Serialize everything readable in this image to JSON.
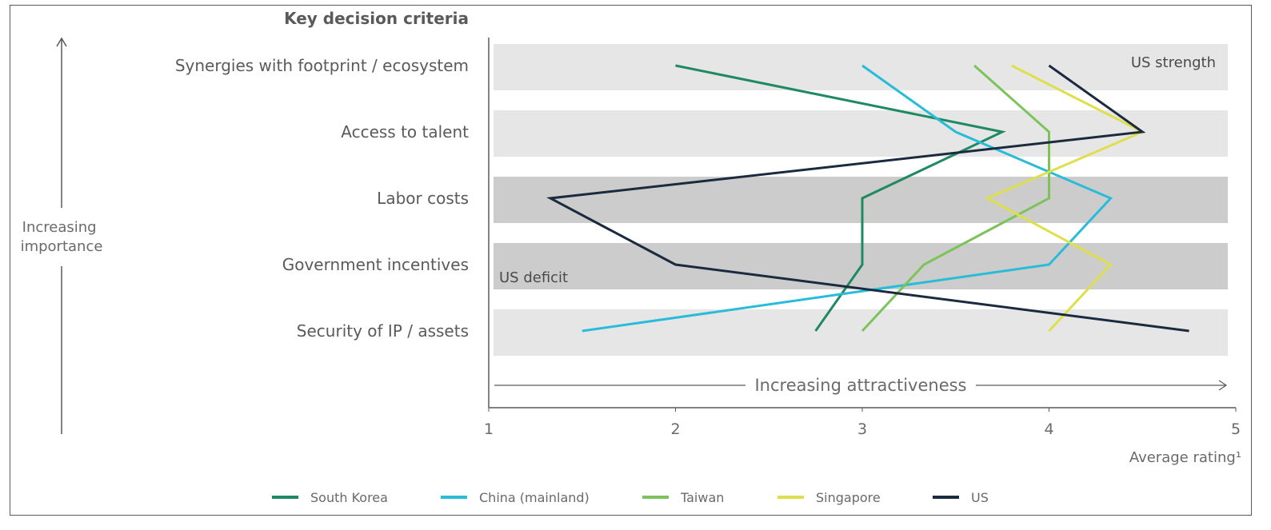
{
  "chart_data": {
    "type": "line",
    "header": "Key decision criteria",
    "categories": [
      "Synergies with footprint / ecosystem",
      "Access to talent",
      "Labor costs",
      "Government incentives",
      "Security of IP / assets"
    ],
    "band_shades": [
      "light",
      "light",
      "dark",
      "dark",
      "light"
    ],
    "band_labels": {
      "top": "US strength",
      "mid": "US deficit"
    },
    "series": [
      {
        "name": "South Korea",
        "color": "#1f8a62",
        "values": [
          2.0,
          3.75,
          3.0,
          3.0,
          2.75
        ]
      },
      {
        "name": "China (mainland)",
        "color": "#29bcd8",
        "values": [
          3.0,
          3.5,
          4.33,
          4.0,
          1.5
        ]
      },
      {
        "name": "Taiwan",
        "color": "#7cc45a",
        "values": [
          3.6,
          4.0,
          4.0,
          3.33,
          3.0
        ]
      },
      {
        "name": "Singapore",
        "color": "#dde04a",
        "values": [
          3.8,
          4.5,
          3.67,
          4.33,
          4.0
        ]
      },
      {
        "name": "US",
        "color": "#1b2b3f",
        "values": [
          4.0,
          4.5,
          1.33,
          2.0,
          4.75
        ]
      }
    ],
    "xlim": [
      1,
      5
    ],
    "xticks": [
      "1",
      "2",
      "3",
      "4",
      "5"
    ],
    "xlabel": "Average rating¹",
    "x_arrow_label": "Increasing attractiveness",
    "y_arrow_label": [
      "Increasing",
      "importance"
    ],
    "legend_position": "bottom",
    "grid": false
  }
}
